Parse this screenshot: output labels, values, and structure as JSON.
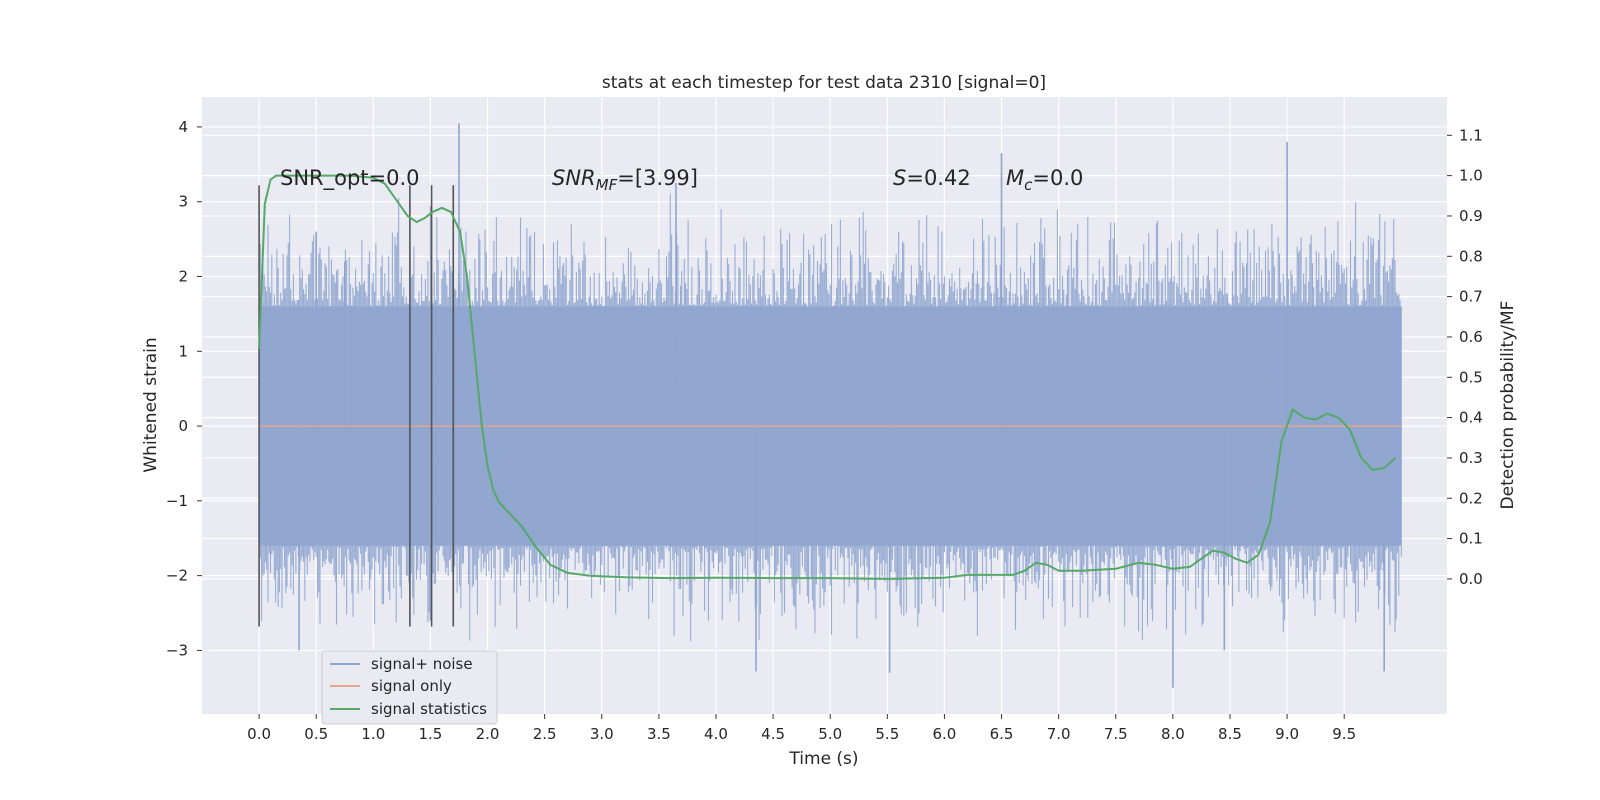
{
  "chart_data": {
    "type": "line",
    "title": "stats at each timestep for test data 2310 [signal=0]",
    "xlabel": "Time (s)",
    "ylabel": "Whitened strain",
    "y2label": "Detection probability/MF",
    "xlim": [
      -0.5,
      10.4
    ],
    "ylim": [
      -3.85,
      4.4
    ],
    "y2lim": [
      -0.335,
      1.195
    ],
    "x_ticks": [
      "0.0",
      "0.5",
      "1.0",
      "1.5",
      "2.0",
      "2.5",
      "3.0",
      "3.5",
      "4.0",
      "4.5",
      "5.0",
      "5.5",
      "6.0",
      "6.5",
      "7.0",
      "7.5",
      "8.0",
      "8.5",
      "9.0",
      "9.5"
    ],
    "y_ticks": [
      "−3",
      "−2",
      "−1",
      "0",
      "1",
      "2",
      "3",
      "4"
    ],
    "y2_ticks": [
      "0.0",
      "0.1",
      "0.2",
      "0.3",
      "0.4",
      "0.5",
      "0.6",
      "0.7",
      "0.8",
      "0.9",
      "1.0",
      "1.1"
    ],
    "grid": true,
    "legend_position": "lower-left",
    "annotations": {
      "snr_opt": "SNR_opt=0.0",
      "snr_mf_label": "SNR",
      "snr_mf_sub": "MF",
      "snr_mf_value": "=[3.99]",
      "s_label": "S",
      "s_value": "=0.42",
      "mc_label": "M",
      "mc_sub": "c",
      "mc_value": "=0.0"
    },
    "vertical_markers": [
      {
        "x": 0.0,
        "y_range": [
          -2.68,
          3.22
        ]
      },
      {
        "x": 1.32,
        "y_range": [
          -2.68,
          3.22
        ]
      },
      {
        "x": 1.51,
        "y_range": [
          -2.68,
          3.22
        ]
      },
      {
        "x": 1.7,
        "y_range": [
          -2.68,
          3.22
        ]
      }
    ],
    "series": [
      {
        "name": "signal+ noise",
        "color": "#8fa5cf",
        "axis": "left",
        "x_range": [
          0.0,
          10.0
        ],
        "core_amplitude": 1.6,
        "spike_max": 3.5,
        "notable_spikes": [
          [
            0.35,
            -3.0
          ],
          [
            0.5,
            2.6
          ],
          [
            0.75,
            2.2
          ],
          [
            1.5,
            -2.6
          ],
          [
            1.75,
            4.05
          ],
          [
            3.65,
            3.25
          ],
          [
            4.35,
            -3.28
          ],
          [
            5.52,
            -3.3
          ],
          [
            6.5,
            3.65
          ],
          [
            8.0,
            -3.5
          ],
          [
            8.45,
            -3.0
          ],
          [
            9.0,
            3.8
          ],
          [
            9.85,
            -3.28
          ]
        ]
      },
      {
        "name": "signal only",
        "color": "#e5a589",
        "axis": "left",
        "x": [
          0.0,
          10.0
        ],
        "y": [
          0.0,
          0.0
        ]
      },
      {
        "name": "signal statistics",
        "color": "#55a868",
        "axis": "right",
        "x": [
          0.0,
          0.05,
          0.1,
          0.15,
          0.25,
          0.5,
          0.8,
          1.0,
          1.1,
          1.2,
          1.3,
          1.38,
          1.45,
          1.52,
          1.6,
          1.68,
          1.76,
          1.82,
          1.88,
          1.95,
          2.0,
          2.05,
          2.1,
          2.2,
          2.3,
          2.42,
          2.55,
          2.7,
          2.9,
          3.2,
          3.6,
          4.0,
          4.5,
          5.0,
          5.5,
          6.0,
          6.2,
          6.4,
          6.6,
          6.7,
          6.8,
          6.9,
          7.0,
          7.2,
          7.5,
          7.7,
          7.85,
          8.0,
          8.15,
          8.25,
          8.35,
          8.45,
          8.55,
          8.65,
          8.75,
          8.85,
          8.95,
          9.05,
          9.15,
          9.25,
          9.35,
          9.45,
          9.55,
          9.65,
          9.75,
          9.85,
          9.95
        ],
        "y": [
          0.57,
          0.93,
          0.99,
          1.0,
          1.0,
          1.0,
          1.0,
          0.995,
          0.98,
          0.94,
          0.9,
          0.885,
          0.895,
          0.91,
          0.92,
          0.91,
          0.86,
          0.75,
          0.58,
          0.38,
          0.28,
          0.22,
          0.19,
          0.16,
          0.13,
          0.08,
          0.035,
          0.015,
          0.008,
          0.004,
          0.002,
          0.003,
          0.002,
          0.002,
          0.0,
          0.003,
          0.01,
          0.01,
          0.01,
          0.02,
          0.04,
          0.035,
          0.02,
          0.02,
          0.025,
          0.04,
          0.035,
          0.025,
          0.03,
          0.05,
          0.07,
          0.065,
          0.05,
          0.04,
          0.06,
          0.14,
          0.34,
          0.42,
          0.4,
          0.395,
          0.41,
          0.4,
          0.37,
          0.3,
          0.27,
          0.275,
          0.3
        ]
      }
    ]
  }
}
